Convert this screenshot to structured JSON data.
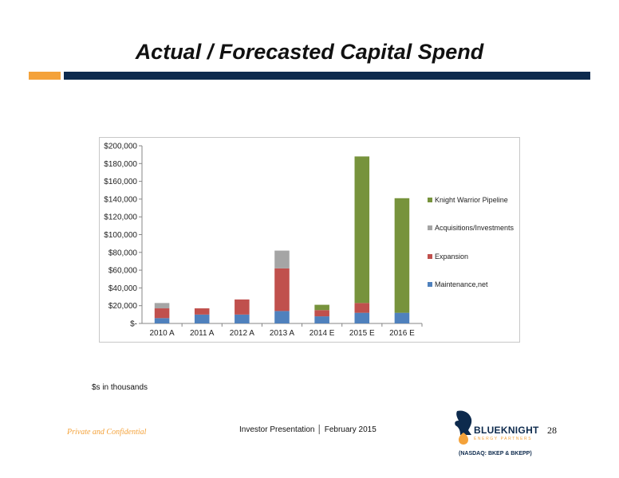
{
  "slide": {
    "title": "Actual / Forecasted Capital Spend",
    "note": "$s in thousands",
    "footer_left": "Private and Confidential",
    "footer_center_a": "Investor Presentation",
    "footer_center_b": "February 2015",
    "page_number": "28",
    "logo_name": "BLUEKNIGHT",
    "logo_sub": "ENERGY PARTNERS",
    "logo_tickers": "(NASDAQ: BKEP & BKEPP)"
  },
  "colors": {
    "accent_orange": "#f4a23a",
    "navy": "#0d2a4d"
  },
  "chart_data": {
    "type": "bar",
    "stacked": true,
    "categories": [
      "2010 A",
      "2011 A",
      "2012 A",
      "2013 A",
      "2014 E",
      "2015 E",
      "2016 E"
    ],
    "series": [
      {
        "name": "Maintenance,net",
        "color": "#4f81bd",
        "values": [
          6000,
          10000,
          10000,
          14000,
          8000,
          12000,
          12000
        ]
      },
      {
        "name": "Expansion",
        "color": "#c0504d",
        "values": [
          11000,
          7000,
          17000,
          48000,
          7000,
          11000,
          0
        ]
      },
      {
        "name": "Acquisitions/Investments",
        "color": "#a5a5a5",
        "values": [
          6000,
          0,
          0,
          20000,
          0,
          0,
          0
        ]
      },
      {
        "name": "Knight Warrior Pipeline",
        "color": "#77933c",
        "values": [
          0,
          0,
          0,
          0,
          6000,
          165000,
          129000
        ]
      }
    ],
    "legend_order": [
      "Knight Warrior Pipeline",
      "Acquisitions/Investments",
      "Expansion",
      "Maintenance,net"
    ],
    "y_ticks": [
      0,
      20000,
      40000,
      60000,
      80000,
      100000,
      120000,
      140000,
      160000,
      180000,
      200000
    ],
    "y_tick_labels": [
      "$-",
      "$20,000",
      "$40,000",
      "$60,000",
      "$80,000",
      "$100,000",
      "$120,000",
      "$140,000",
      "$160,000",
      "$180,000",
      "$200,000"
    ],
    "ylim": [
      0,
      200000
    ],
    "grid": false,
    "legend_position": "right"
  }
}
